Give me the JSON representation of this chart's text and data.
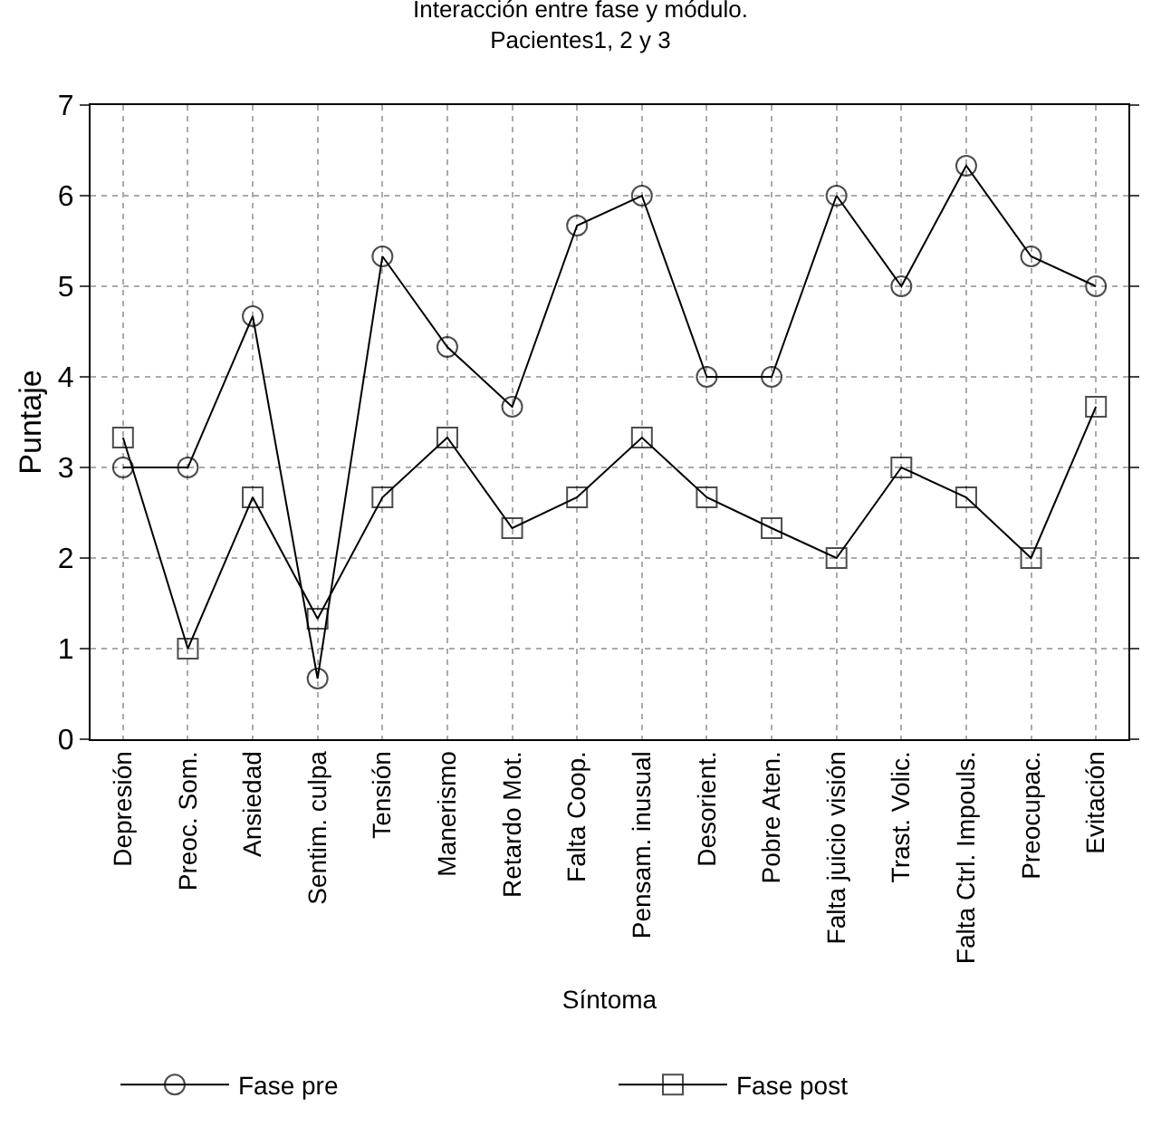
{
  "chart_data": {
    "type": "line",
    "title": "Interacción entre fase y módulo.\nPacientes1, 2 y 3",
    "xlabel": "Síntoma",
    "ylabel": "Puntaje",
    "categories": [
      "Depresión",
      "Preoc. Som.",
      "Ansiedad",
      "Sentim. culpa",
      "Tensión",
      "Manerismo",
      "Retardo Mot.",
      "Falta Coop.",
      "Pensam. inusual",
      "Desorient.",
      "Pobre Aten.",
      "Falta juicio visión",
      "Trast. Volic.",
      "Falta Ctrl. Impouls.",
      "Preocupac.",
      "Evitación"
    ],
    "series": [
      {
        "name": "Fase pre",
        "color": "#000000",
        "marker": "circle",
        "values": [
          3,
          3,
          4.67,
          0.67,
          5.33,
          4.33,
          3.67,
          5.67,
          6,
          4,
          4,
          6,
          5,
          6.33,
          5.33,
          5
        ]
      },
      {
        "name": "Fase post",
        "color": "#000000",
        "marker": "square",
        "values": [
          3.33,
          1,
          2.67,
          1.33,
          2.67,
          3.33,
          2.33,
          2.67,
          3.33,
          2.67,
          2.33,
          2,
          3,
          2.67,
          2,
          3.67
        ]
      }
    ],
    "ylim": [
      0,
      7
    ],
    "yticks": [
      0,
      1,
      2,
      3,
      4,
      5,
      6,
      7
    ],
    "grid": true,
    "legend": "bottom",
    "line_style": "solid"
  }
}
